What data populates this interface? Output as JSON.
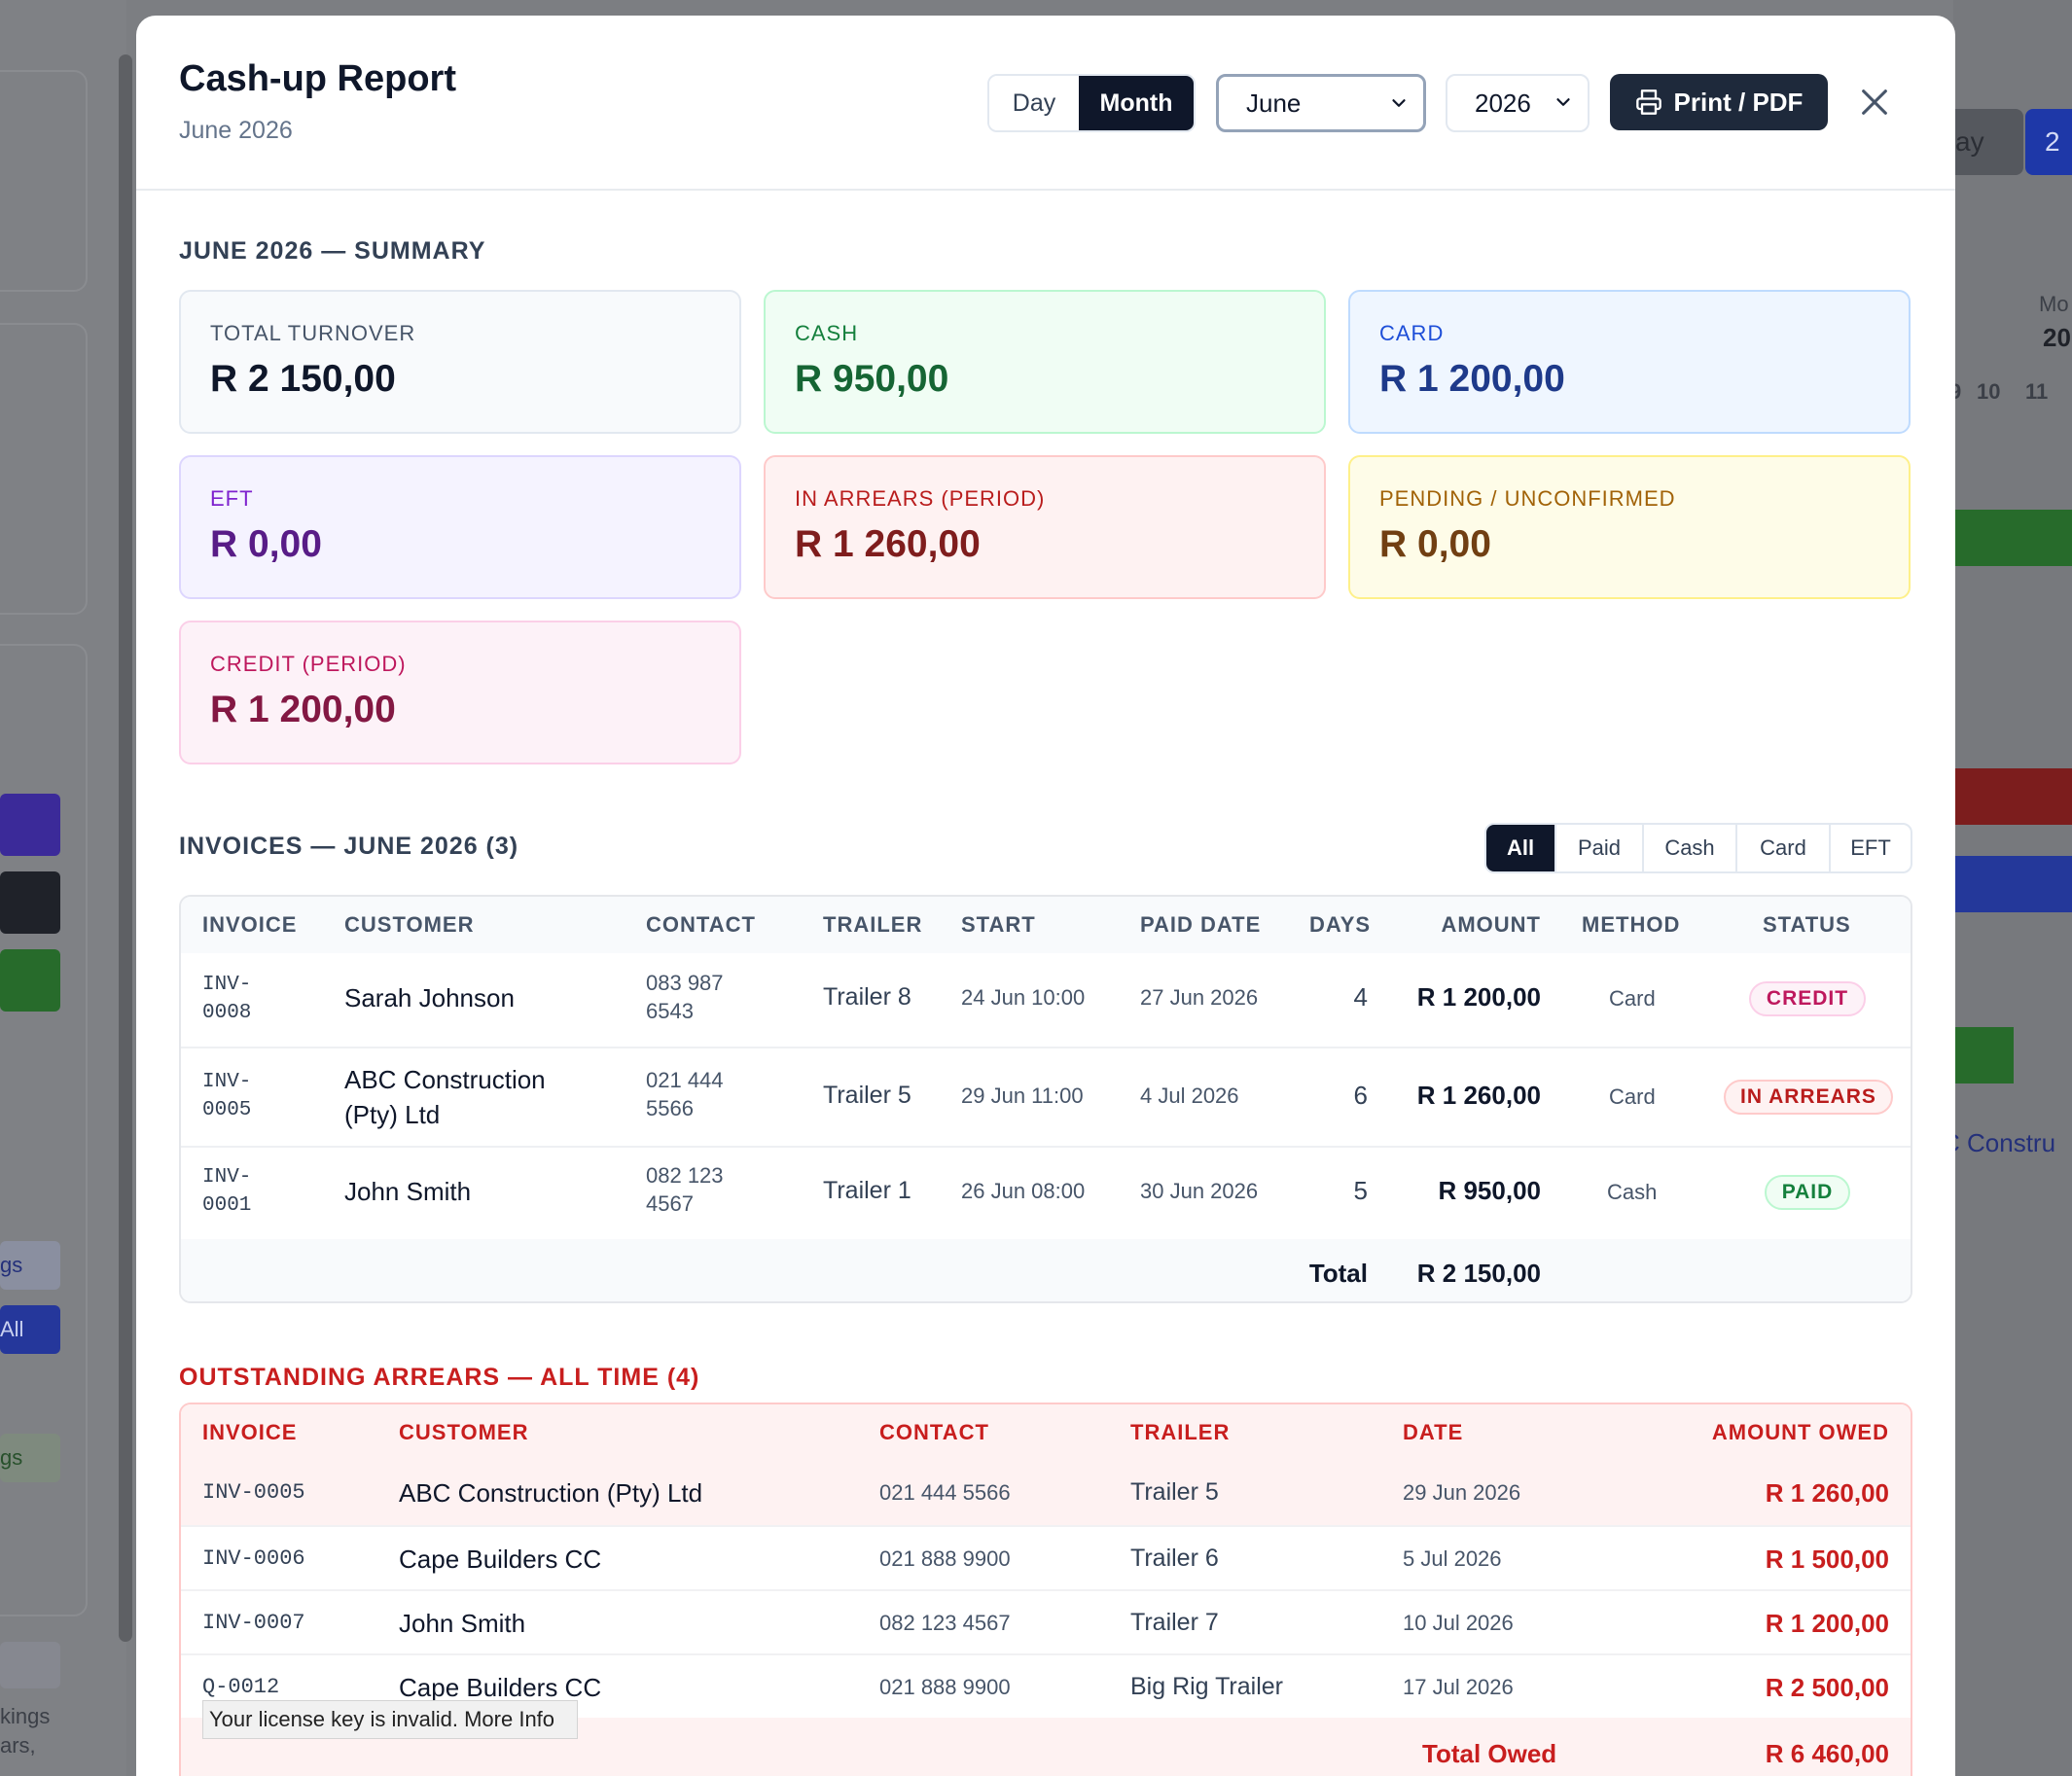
{
  "header": {
    "title": "Cash-up Report",
    "subtitle": "June 2026",
    "period_options": [
      "Day",
      "Month"
    ],
    "period_selected": "Month",
    "month": "June",
    "year": "2026",
    "print_label": "Print / PDF"
  },
  "summary": {
    "heading": "JUNE 2026 — SUMMARY",
    "cards": [
      {
        "label": "TOTAL TURNOVER",
        "value": "R 2 150,00"
      },
      {
        "label": "CASH",
        "value": "R 950,00"
      },
      {
        "label": "CARD",
        "value": "R 1 200,00"
      },
      {
        "label": "EFT",
        "value": "R 0,00"
      },
      {
        "label": "IN ARREARS (PERIOD)",
        "value": "R 1 260,00"
      },
      {
        "label": "PENDING / UNCONFIRMED",
        "value": "R 0,00"
      },
      {
        "label": "CREDIT (PERIOD)",
        "value": "R 1 200,00"
      }
    ]
  },
  "invoices": {
    "heading": "INVOICES — JUNE 2026 (3)",
    "filters": [
      "All",
      "Paid",
      "Cash",
      "Card",
      "EFT"
    ],
    "active_filter": "All",
    "columns": [
      "INVOICE",
      "CUSTOMER",
      "CONTACT",
      "TRAILER",
      "START",
      "PAID DATE",
      "DAYS",
      "AMOUNT",
      "METHOD",
      "STATUS"
    ],
    "rows": [
      {
        "inv1": "INV-",
        "inv2": "0008",
        "cust1": "Sarah Johnson",
        "cust2": "",
        "con1": "083 987",
        "con2": "6543",
        "trailer": "Trailer 8",
        "start": "24 Jun 10:00",
        "paid": "27 Jun 2026",
        "days": "4",
        "amount": "R 1 200,00",
        "method": "Card",
        "status": "CREDIT"
      },
      {
        "inv1": "INV-",
        "inv2": "0005",
        "cust1": "ABC Construction",
        "cust2": "(Pty) Ltd",
        "con1": "021 444",
        "con2": "5566",
        "trailer": "Trailer 5",
        "start": "29 Jun 11:00",
        "paid": "4 Jul 2026",
        "days": "6",
        "amount": "R 1 260,00",
        "method": "Card",
        "status": "IN ARREARS"
      },
      {
        "inv1": "INV-",
        "inv2": "0001",
        "cust1": "John Smith",
        "cust2": "",
        "con1": "082 123",
        "con2": "4567",
        "trailer": "Trailer 1",
        "start": "26 Jun 08:00",
        "paid": "30 Jun 2026",
        "days": "5",
        "amount": "R 950,00",
        "method": "Cash",
        "status": "PAID"
      }
    ],
    "total_label": "Total",
    "total_value": "R 2 150,00"
  },
  "arrears": {
    "heading": "OUTSTANDING ARREARS — ALL TIME (4)",
    "columns": [
      "INVOICE",
      "CUSTOMER",
      "CONTACT",
      "TRAILER",
      "DATE",
      "AMOUNT OWED"
    ],
    "rows": [
      {
        "invoice": "INV-0005",
        "customer": "ABC Construction (Pty) Ltd",
        "contact": "021 444 5566",
        "trailer": "Trailer 5",
        "date": "29 Jun 2026",
        "owed": "R 1 260,00"
      },
      {
        "invoice": "INV-0006",
        "customer": "Cape Builders CC",
        "contact": "021 888 9900",
        "trailer": "Trailer 6",
        "date": "5 Jul 2026",
        "owed": "R 1 500,00"
      },
      {
        "invoice": "INV-0007",
        "customer": "John Smith",
        "contact": "082 123 4567",
        "trailer": "Trailer 7",
        "date": "10 Jul 2026",
        "owed": "R 1 200,00"
      },
      {
        "invoice": "Q-0012",
        "customer": "Cape Builders CC",
        "contact": "021 888 9900",
        "trailer": "Big Rig Trailer",
        "date": "17 Jul 2026",
        "owed": "R 2 500,00"
      }
    ],
    "total_label": "Total Owed",
    "total_value": "R 6 460,00"
  },
  "notice": "Your license key is invalid. More Info",
  "background": {
    "left_texts": [
      "gs",
      "All",
      "gs",
      "kings",
      "ars,"
    ],
    "right_texts": [
      "ay",
      "2",
      "Mo",
      "20",
      "9",
      "10",
      "11",
      "C Constru"
    ]
  },
  "colors": {
    "dark": "#0f172a",
    "credit": "#be185d",
    "arrears": "#b91c1c",
    "paid": "#15803d",
    "arrears_heading": "#c81e1e"
  },
  "icons": [
    "printer-icon",
    "close-icon",
    "chevron-down-icon"
  ]
}
